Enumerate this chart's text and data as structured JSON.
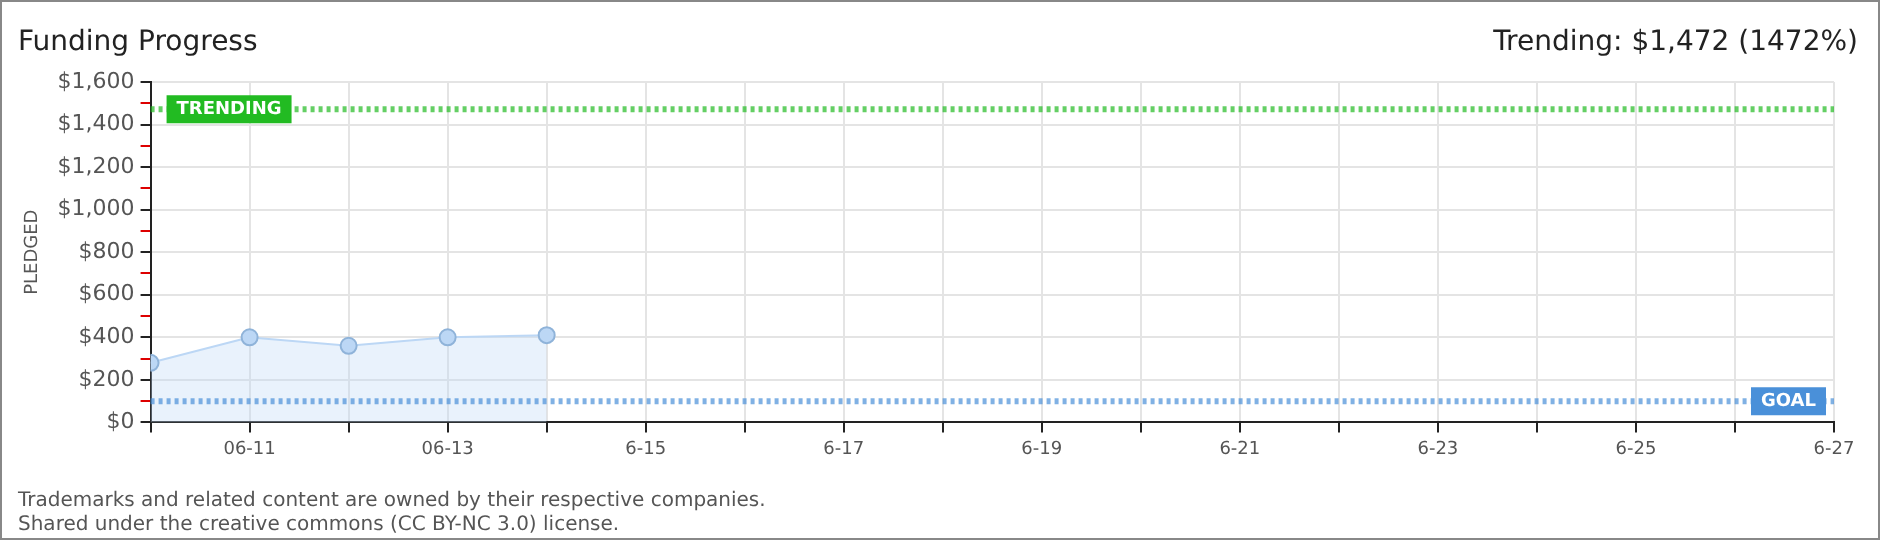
{
  "chart_data": {
    "type": "area",
    "title": "Funding Progress",
    "ylabel": "PLEDGED",
    "x": [
      "--06-10",
      "--06-11",
      "--06-12",
      "--06-13",
      "--06-14"
    ],
    "series": [
      {
        "color": "#bcd7f5",
        "values": [
          280,
          400,
          360,
          400,
          410
        ]
      }
    ],
    "xlim": [
      "--06-10",
      "--06-27"
    ],
    "xticks": [
      {
        "value": "--06-10",
        "label": null
      },
      {
        "value": "--06-11",
        "label": "06-11"
      },
      {
        "value": "--06-12",
        "label": null
      },
      {
        "value": "--06-13",
        "label": "06-13"
      },
      {
        "value": "--06-14",
        "label": null
      },
      {
        "value": "--06-15",
        "label": "6-15"
      },
      {
        "value": "--06-16",
        "label": null
      },
      {
        "value": "--06-17",
        "label": "6-17"
      },
      {
        "value": "--06-18",
        "label": null
      },
      {
        "value": "--06-19",
        "label": "6-19"
      },
      {
        "value": "--06-20",
        "label": null
      },
      {
        "value": "--06-21",
        "label": "6-21"
      },
      {
        "value": "--06-22",
        "label": null
      },
      {
        "value": "--06-23",
        "label": "6-23"
      },
      {
        "value": "--06-24",
        "label": null
      },
      {
        "value": "--06-25",
        "label": "6-25"
      },
      {
        "value": "--06-26",
        "label": null
      },
      {
        "value": "--06-27",
        "label": "6-27"
      }
    ],
    "ylim": [
      0,
      1600
    ],
    "yticks": [
      {
        "value": 0,
        "label": "$0"
      },
      {
        "value": 100,
        "label": null
      },
      {
        "value": 200,
        "label": "$200"
      },
      {
        "value": 300,
        "label": null
      },
      {
        "value": 400,
        "label": "$400"
      },
      {
        "value": 500,
        "label": null
      },
      {
        "value": 600,
        "label": "$600"
      },
      {
        "value": 700,
        "label": null
      },
      {
        "value": 800,
        "label": "$800"
      },
      {
        "value": 900,
        "label": null
      },
      {
        "value": 1000,
        "label": "$1,000"
      },
      {
        "value": 1100,
        "label": null
      },
      {
        "value": 1200,
        "label": "$1,200"
      },
      {
        "value": 1300,
        "label": null
      },
      {
        "value": 1400,
        "label": "$1,400"
      },
      {
        "value": 1500,
        "label": null
      },
      {
        "value": 1600,
        "label": "$1,600"
      }
    ],
    "ref_lines": [
      {
        "axis": "y",
        "value": 1472,
        "label": "TRENDING",
        "color": "#22bb22",
        "line_style": "dotted"
      },
      {
        "axis": "y",
        "value": 100,
        "label": "GOAL",
        "color": "#4a90d9",
        "line_style": "dotted"
      }
    ],
    "annotations": [
      "Trending: $1,472 (1472%)",
      "Trademarks and related content are owned by their respective companies.",
      "Shared under the creative commons (CC BY-NC 3.0) license."
    ],
    "grid": true,
    "legend": false,
    "marker": "circle",
    "line_style": "solid"
  }
}
